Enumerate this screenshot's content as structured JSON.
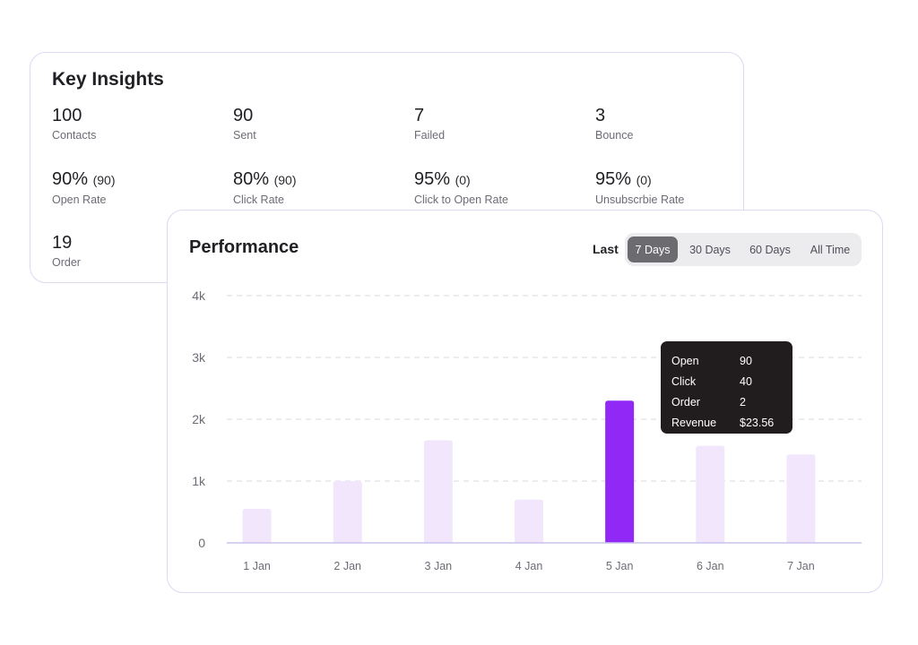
{
  "insights": {
    "title": "Key Insights",
    "metrics": [
      {
        "value": "100",
        "sub": "",
        "label": "Contacts"
      },
      {
        "value": "90",
        "sub": "",
        "label": "Sent"
      },
      {
        "value": "7",
        "sub": "",
        "label": "Failed"
      },
      {
        "value": "3",
        "sub": "",
        "label": "Bounce"
      },
      {
        "value": "90%",
        "sub": "(90)",
        "label": "Open Rate"
      },
      {
        "value": "80%",
        "sub": "(90)",
        "label": "Click Rate"
      },
      {
        "value": "95%",
        "sub": "(0)",
        "label": "Click to Open Rate"
      },
      {
        "value": "95%",
        "sub": "(0)",
        "label": "Unsubscrbie Rate"
      },
      {
        "value": "19",
        "sub": "",
        "label": "Order"
      }
    ]
  },
  "performance": {
    "title": "Performance",
    "range_label": "Last",
    "ranges": [
      "7 Days",
      "30 Days",
      "60 Days",
      "All Time"
    ],
    "active_range": "7 Days",
    "tooltip": {
      "rows": [
        {
          "key": "Open",
          "value": "90"
        },
        {
          "key": "Click",
          "value": "40"
        },
        {
          "key": "Order",
          "value": "2"
        },
        {
          "key": "Revenue",
          "value": "$23.56"
        }
      ]
    }
  },
  "colors": {
    "bar": "#f1e6fb",
    "bar_highlight": "#9128f5",
    "grid": "#d8d8dc",
    "axis": "#c9c3ea",
    "tick_text": "#6c6c76",
    "tooltip_bg": "#211c1e"
  },
  "chart_data": {
    "type": "bar",
    "title": "Performance",
    "categories": [
      "1 Jan",
      "2 Jan",
      "3 Jan",
      "4 Jan",
      "5 Jan",
      "6 Jan",
      "7 Jan"
    ],
    "values": [
      550,
      1000,
      1660,
      700,
      2300,
      1570,
      1430
    ],
    "highlight_index": 4,
    "ylim": [
      0,
      4000
    ],
    "yticks": [
      0,
      1000,
      2000,
      3000,
      4000
    ],
    "ytick_labels": [
      "0",
      "1k",
      "2k",
      "3k",
      "4k"
    ],
    "xlabel": "",
    "ylabel": "",
    "grid": true,
    "legend": "none"
  }
}
